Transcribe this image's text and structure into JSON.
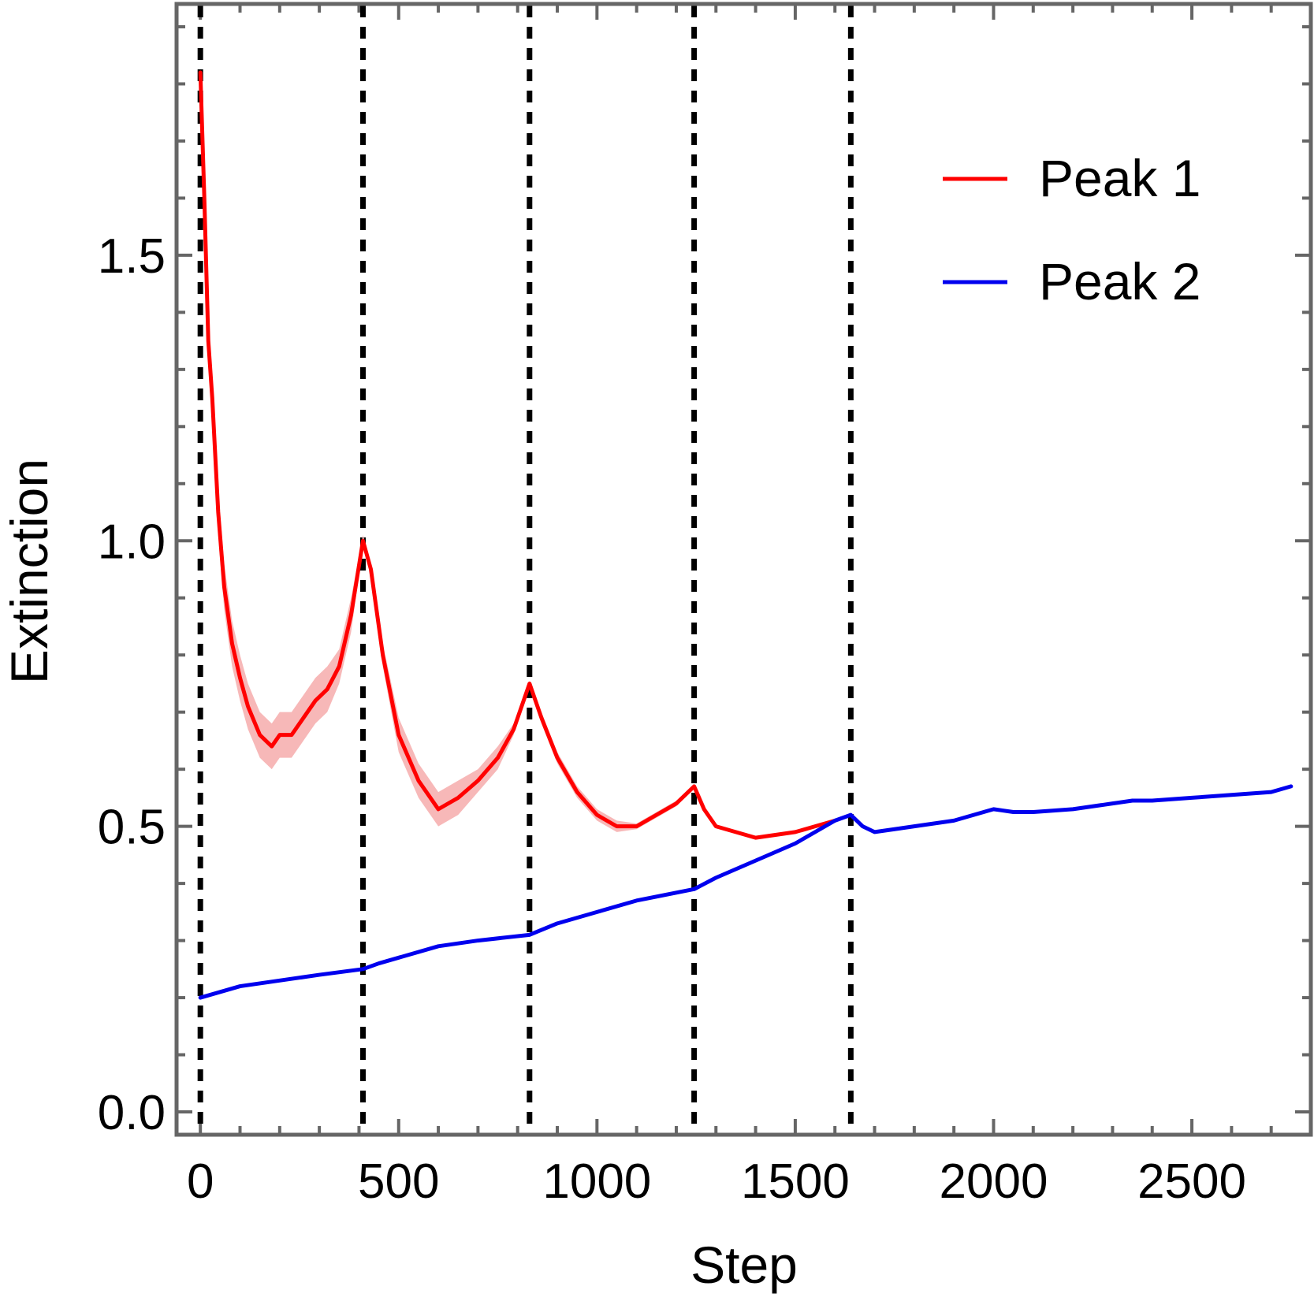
{
  "chart_data": {
    "type": "line",
    "title": "",
    "xlabel": "Step",
    "ylabel": "Extinction",
    "xlim": [
      -60,
      2800
    ],
    "ylim": [
      -0.04,
      1.94
    ],
    "xticks": [
      0,
      500,
      1000,
      1500,
      2000,
      2500
    ],
    "xtick_labels": [
      "0",
      "500",
      "1000",
      "1500",
      "2000",
      "2500"
    ],
    "yticks": [
      0.0,
      0.5,
      1.0,
      1.5
    ],
    "ytick_labels": [
      "0.0",
      "0.5",
      "1.0",
      "1.5"
    ],
    "grid": false,
    "legend_position": "top-right",
    "vlines": [
      0,
      410,
      830,
      1245,
      1640
    ],
    "colors": {
      "peak1": "#ff0000",
      "peak1_band": "#f7b8b8",
      "peak2": "#0000ee",
      "vline": "#000000",
      "frame": "#666666"
    },
    "series": [
      {
        "name": "Peak 1",
        "color": "#ff0000",
        "x": [
          0,
          10,
          20,
          30,
          45,
          60,
          80,
          100,
          120,
          150,
          180,
          200,
          230,
          260,
          290,
          320,
          350,
          380,
          410,
          430,
          460,
          500,
          550,
          600,
          650,
          700,
          750,
          790,
          830,
          860,
          900,
          950,
          1000,
          1050,
          1100,
          1150,
          1200,
          1245,
          1270,
          1300,
          1350,
          1400,
          1450,
          1500,
          1550,
          1600
        ],
        "y": [
          1.82,
          1.6,
          1.35,
          1.25,
          1.05,
          0.92,
          0.82,
          0.76,
          0.71,
          0.66,
          0.64,
          0.66,
          0.66,
          0.69,
          0.72,
          0.74,
          0.78,
          0.87,
          1.0,
          0.95,
          0.8,
          0.66,
          0.58,
          0.53,
          0.55,
          0.58,
          0.62,
          0.67,
          0.75,
          0.69,
          0.62,
          0.56,
          0.52,
          0.5,
          0.5,
          0.52,
          0.54,
          0.57,
          0.53,
          0.5,
          0.49,
          0.48,
          0.485,
          0.49,
          0.5,
          0.51
        ],
        "band": [
          0.0,
          0.01,
          0.02,
          0.03,
          0.04,
          0.04,
          0.04,
          0.04,
          0.04,
          0.04,
          0.04,
          0.04,
          0.04,
          0.04,
          0.04,
          0.04,
          0.03,
          0.03,
          0.01,
          0.01,
          0.02,
          0.03,
          0.03,
          0.03,
          0.03,
          0.02,
          0.02,
          0.01,
          0.005,
          0.01,
          0.01,
          0.01,
          0.01,
          0.01,
          0.005,
          0.005,
          0.005,
          0.0,
          0.0,
          0.0,
          0.0,
          0.0,
          0.0,
          0.0,
          0.0,
          0.0
        ]
      },
      {
        "name": "Peak 2",
        "color": "#0000ee",
        "x": [
          0,
          50,
          100,
          200,
          300,
          410,
          450,
          500,
          600,
          700,
          830,
          900,
          1000,
          1100,
          1245,
          1300,
          1400,
          1500,
          1550,
          1600,
          1640,
          1670,
          1700,
          1800,
          1900,
          2000,
          2050,
          2100,
          2200,
          2300,
          2350,
          2400,
          2500,
          2600,
          2700,
          2750
        ],
        "y": [
          0.2,
          0.21,
          0.22,
          0.23,
          0.24,
          0.25,
          0.26,
          0.27,
          0.29,
          0.3,
          0.31,
          0.33,
          0.35,
          0.37,
          0.39,
          0.41,
          0.44,
          0.47,
          0.49,
          0.51,
          0.52,
          0.5,
          0.49,
          0.5,
          0.51,
          0.53,
          0.525,
          0.525,
          0.53,
          0.54,
          0.545,
          0.545,
          0.55,
          0.555,
          0.56,
          0.57
        ]
      }
    ]
  }
}
